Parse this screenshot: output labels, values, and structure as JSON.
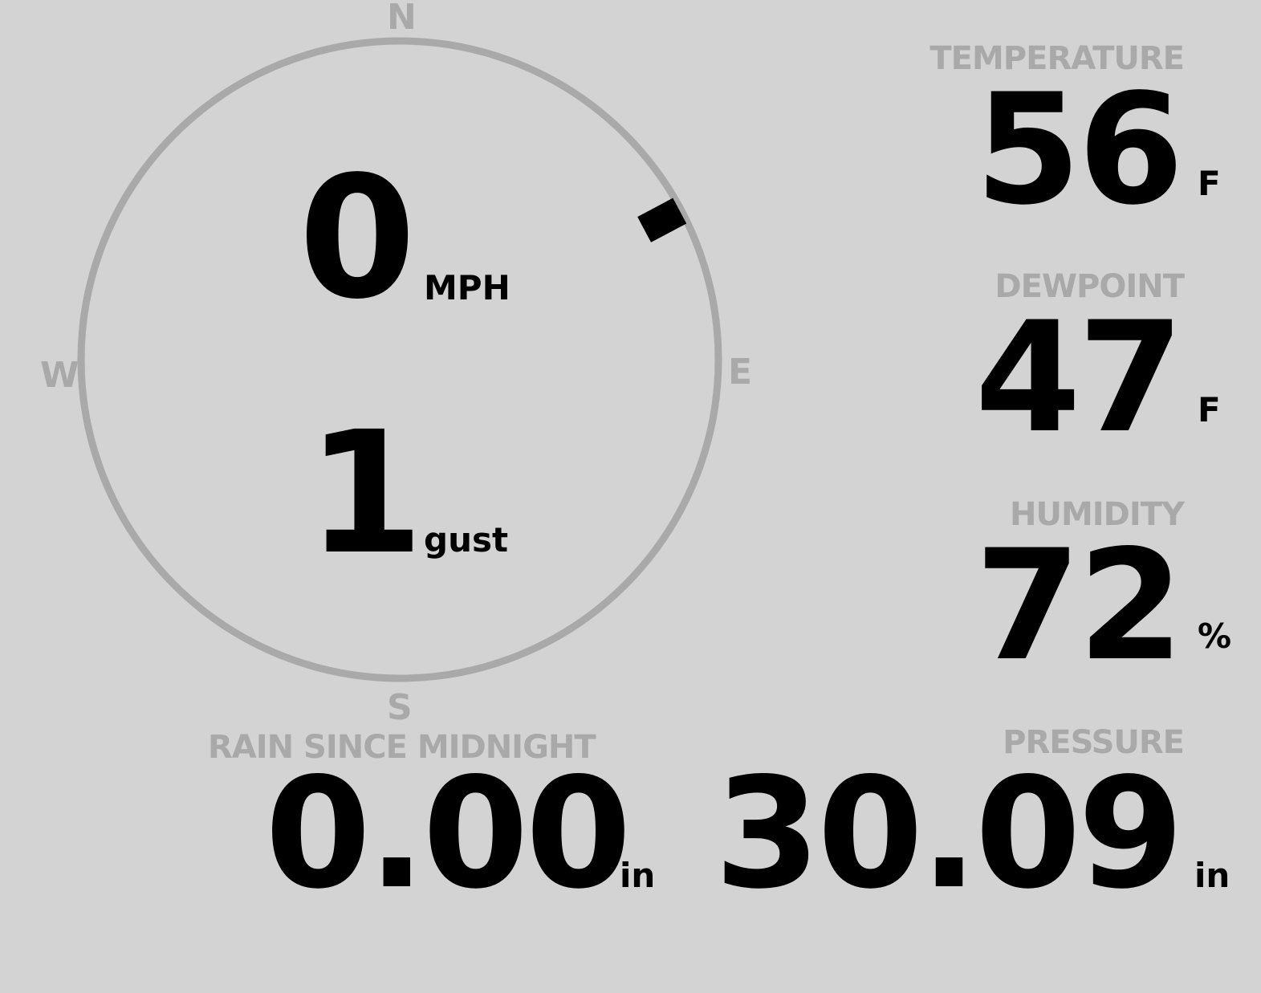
{
  "wind": {
    "compass": {
      "n": "N",
      "e": "E",
      "s": "S",
      "w": "W"
    },
    "speed": "0",
    "speed_unit": "MPH",
    "gust": "1",
    "gust_unit": "gust",
    "direction_deg": 62
  },
  "temperature": {
    "label": "TEMPERATURE",
    "value": "56",
    "unit": "F"
  },
  "dewpoint": {
    "label": "DEWPOINT",
    "value": "47",
    "unit": "F"
  },
  "humidity": {
    "label": "HUMIDITY",
    "value": "72",
    "unit": "%"
  },
  "rain": {
    "label": "RAIN SINCE MIDNIGHT",
    "value": "0.00",
    "unit": "in"
  },
  "pressure": {
    "label": "PRESSURE",
    "value": "30.09",
    "unit": "in"
  },
  "colors": {
    "background": "#d3d3d3",
    "label": "#a9a9a9",
    "value": "#000000"
  }
}
